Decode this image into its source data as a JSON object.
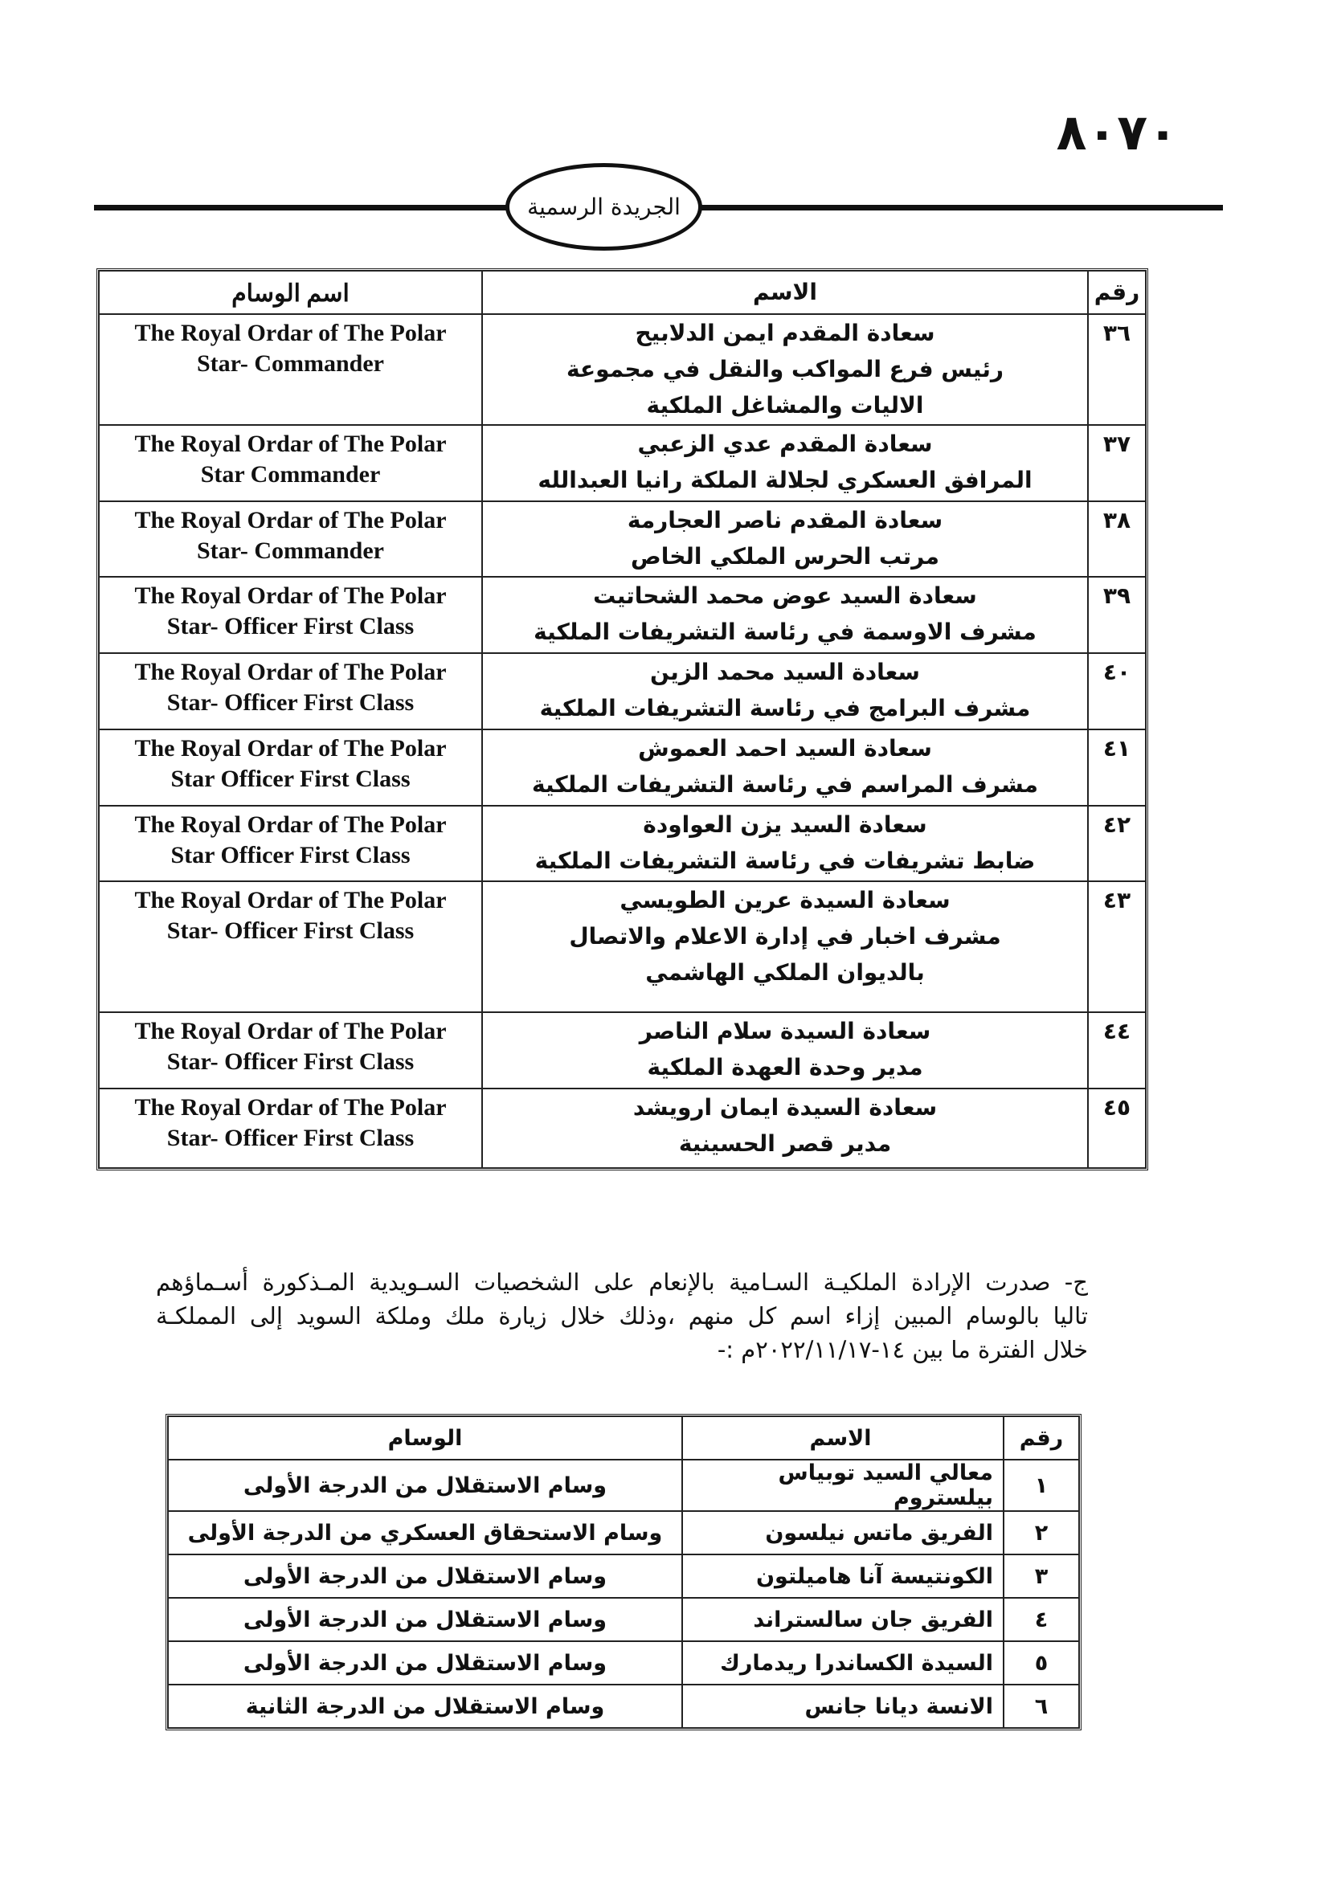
{
  "header": {
    "page_number": "٨٠٧٠",
    "title": "الجريدة الرسمية"
  },
  "table1": {
    "headers": [
      "رقم",
      "الاسم",
      "اسم الوسام"
    ],
    "rows": [
      {
        "number": "٣٦",
        "name": [
          "سعادة المقدم ايمن الدلابيح",
          "رئيس فرع المواكب والنقل في مجموعة",
          "الاليات والمشاغل الملكية"
        ],
        "medal": [
          "The Royal Ordar of The Polar",
          "Star- Commander"
        ]
      },
      {
        "number": "٣٧",
        "name": [
          "سعادة المقدم عدي الزعبي",
          "المرافق العسكري لجلالة الملكة رانيا العبدالله"
        ],
        "medal": [
          "The Royal Ordar of The Polar",
          "Star Commander"
        ]
      },
      {
        "number": "٣٨",
        "name": [
          "سعادة المقدم ناصر العجارمة",
          "مرتب الحرس الملكي الخاص"
        ],
        "medal": [
          "The Royal Ordar of The Polar",
          "Star- Commander"
        ]
      },
      {
        "number": "٣٩",
        "name": [
          "سعادة السيد عوض محمد الشحاتيت",
          "مشرف الاوسمة في رئاسة التشريفات الملكية"
        ],
        "medal": [
          "The Royal Ordar of The Polar",
          "Star- Officer First Class"
        ]
      },
      {
        "number": "٤٠",
        "name": [
          "سعادة السيد محمد الزين",
          "مشرف البرامج في رئاسة التشريفات الملكية"
        ],
        "medal": [
          "The Royal Ordar of The Polar",
          "Star- Officer First Class"
        ]
      },
      {
        "number": "٤١",
        "name": [
          "سعادة السيد احمد العموش",
          "مشرف المراسم في رئاسة التشريفات الملكية"
        ],
        "medal": [
          "The Royal Ordar of The Polar",
          "Star Officer First Class"
        ]
      },
      {
        "number": "٤٢",
        "name": [
          "سعادة السيد يزن العواودة",
          "ضابط تشريفات في رئاسة التشريفات الملكية"
        ],
        "medal": [
          "The Royal Ordar of The Polar",
          "Star Officer First Class"
        ]
      },
      {
        "number": "٤٣",
        "name": [
          "سعادة السيدة عرين الطويسي",
          "مشرف اخبار في إدارة الاعلام والاتصال",
          "بالديوان الملكي الهاشمي"
        ],
        "medal": [
          "The Royal Ordar of The Polar",
          "Star- Officer First Class"
        ]
      },
      {
        "number": "٤٤",
        "name": [
          "سعادة السيدة سلام الناصر",
          "مدير وحدة العهدة الملكية"
        ],
        "medal": [
          "The Royal Ordar of The Polar",
          "Star- Officer First Class"
        ]
      },
      {
        "number": "٤٥",
        "name": [
          "سعادة السيدة ايمان ارويشد",
          "مدير قصر الحسينية"
        ],
        "medal": [
          "The Royal Ordar of The Polar",
          "Star- Officer First Class"
        ]
      }
    ]
  },
  "paragraph": [
    "ج- صدرت الإرادة الملكيـة السـامية بالإنعام على الشخصيات السـويدية المـذكورة أسـماؤهم",
    "تاليا بالوسام المبين إزاء اسم كل منهم ،وذلك خلال زيارة ملك وملكة السويد إلى المملكـة",
    "خلال الفترة ما بين ١٤-٢٠٢٢/١١/١٧م :-"
  ],
  "table2": {
    "headers": [
      "رقم",
      "الاسم",
      "الوسام"
    ],
    "rows": [
      [
        "١",
        "معالي السيد توبياس بيلستروم",
        "وسام الاستقلال من الدرجة الأولى"
      ],
      [
        "٢",
        "الفريق ماتس نيلسون",
        "وسام الاستحقاق العسكري من الدرجة الأولى"
      ],
      [
        "٣",
        "الكونتيسة آنا هاميلتون",
        "وسام الاستقلال من الدرجة الأولى"
      ],
      [
        "٤",
        "الفريق جان سالستراند",
        "وسام الاستقلال من الدرجة الأولى"
      ],
      [
        "٥",
        "السيدة الكساندرا ريدمارك",
        "وسام الاستقلال من الدرجة الأولى"
      ],
      [
        "٦",
        "الانسة ديانا جانس",
        "وسام الاستقلال من الدرجة الثانية"
      ]
    ]
  }
}
